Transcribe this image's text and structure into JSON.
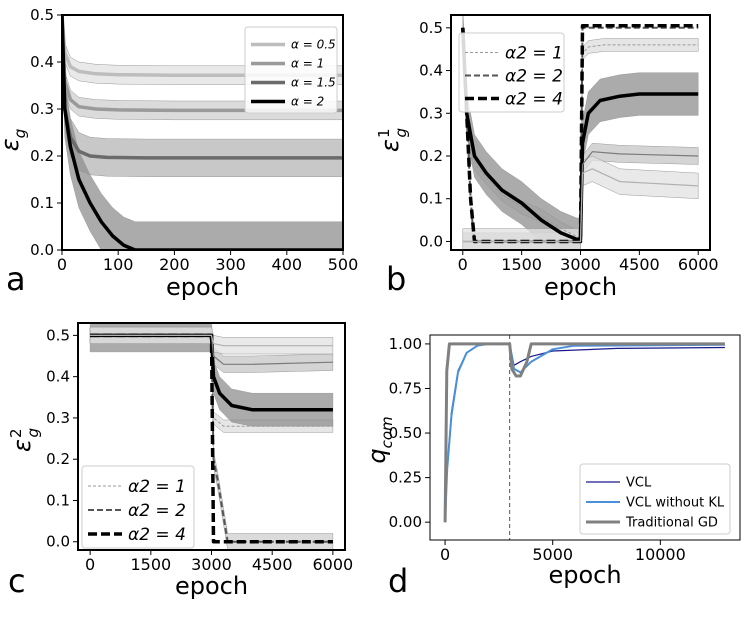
{
  "panels": {
    "a": {
      "letter": "a",
      "xlabel": "epoch",
      "ylabel_sym": "ε",
      "ylabel_sub": "g",
      "ylabel_sup": ""
    },
    "b": {
      "letter": "b",
      "xlabel": "epoch",
      "ylabel_sym": "ε",
      "ylabel_sub": "g",
      "ylabel_sup": "1"
    },
    "c": {
      "letter": "c",
      "xlabel": "epoch",
      "ylabel_sym": "ε",
      "ylabel_sub": "g",
      "ylabel_sup": "2"
    },
    "d": {
      "letter": "d",
      "xlabel": "epoch",
      "ylabel_sym": "q",
      "ylabel_sub": "com",
      "ylabel_sup": ""
    }
  },
  "colors": {
    "light": "#bdbdbd",
    "mid": "#9a9a9a",
    "dark": "#6b6b6b",
    "black": "#000000",
    "vcl": "#1a1a8c",
    "vcl_no_kl": "#4a90d9",
    "gd": "#808080"
  },
  "chart_data": [
    {
      "id": "a",
      "type": "line",
      "xlabel": "epoch",
      "ylabel": "εg",
      "xlim": [
        0,
        500
      ],
      "ylim": [
        0,
        0.5
      ],
      "xticks": [
        0,
        100,
        200,
        300,
        400,
        500
      ],
      "yticks": [
        0.0,
        0.1,
        0.2,
        0.3,
        0.4,
        0.5
      ],
      "xtick_labels": [
        "0",
        "100",
        "200",
        "300",
        "400",
        "500"
      ],
      "ytick_labels": [
        "0.0",
        "0.1",
        "0.2",
        "0.3",
        "0.4",
        "0.5"
      ],
      "legend_position": "top-right",
      "series": [
        {
          "name": "α = 0.5",
          "style": "light",
          "band": 0.02,
          "x": [
            0,
            5,
            15,
            30,
            60,
            100,
            200,
            500
          ],
          "y": [
            0.5,
            0.42,
            0.39,
            0.38,
            0.375,
            0.373,
            0.372,
            0.372
          ]
        },
        {
          "name": "α = 1",
          "style": "mid",
          "band": 0.02,
          "x": [
            0,
            5,
            15,
            30,
            60,
            100,
            200,
            500
          ],
          "y": [
            0.5,
            0.36,
            0.32,
            0.305,
            0.3,
            0.298,
            0.297,
            0.297
          ]
        },
        {
          "name": "α = 1.5",
          "style": "dark",
          "band": 0.04,
          "x": [
            0,
            5,
            15,
            30,
            50,
            80,
            150,
            500
          ],
          "y": [
            0.5,
            0.3,
            0.24,
            0.21,
            0.2,
            0.197,
            0.196,
            0.196
          ]
        },
        {
          "name": "α = 2",
          "style": "black",
          "band": 0.06,
          "x": [
            0,
            5,
            15,
            30,
            50,
            70,
            90,
            110,
            130,
            500
          ],
          "y": [
            0.5,
            0.3,
            0.22,
            0.15,
            0.1,
            0.06,
            0.03,
            0.01,
            0.0,
            0.0
          ]
        }
      ]
    },
    {
      "id": "b",
      "type": "line",
      "xlabel": "epoch",
      "ylabel": "εg1",
      "xlim": [
        -300,
        6300
      ],
      "ylim": [
        -0.02,
        0.53
      ],
      "xticks": [
        0,
        1500,
        3000,
        4500,
        6000
      ],
      "yticks": [
        0.0,
        0.1,
        0.2,
        0.3,
        0.4,
        0.5
      ],
      "xtick_labels": [
        "0",
        "1500",
        "3000",
        "4500",
        "6000"
      ],
      "ytick_labels": [
        "0.0",
        "0.1",
        "0.2",
        "0.3",
        "0.4",
        "0.5"
      ],
      "legend_position": "top-left",
      "series": [
        {
          "name": "α2 = 1",
          "style": "thin-dashed",
          "band": 0.015,
          "x": [
            0,
            100,
            200,
            400,
            700,
            1000,
            1500,
            2000,
            2500,
            2950,
            3000,
            3050,
            3200,
            3600,
            4500,
            6000
          ],
          "y": [
            0.5,
            0.28,
            0.2,
            0.17,
            0.14,
            0.11,
            0.08,
            0.06,
            0.03,
            0.01,
            0.01,
            0.44,
            0.455,
            0.46,
            0.46,
            0.46
          ]
        },
        {
          "name": "α2 = 2",
          "style": "dashed",
          "band": 0.0,
          "x": [
            0,
            100,
            150,
            200,
            250,
            300,
            400,
            3000,
            3050,
            6000
          ],
          "y": [
            0.5,
            0.3,
            0.2,
            0.1,
            0.04,
            0.0,
            0.0,
            0.0,
            0.5,
            0.5
          ]
        },
        {
          "name": "α2 = 4",
          "style": "thick-dashed",
          "band": 0.0,
          "x": [
            0,
            100,
            200,
            300,
            3000,
            3050,
            6000
          ],
          "y": [
            0.5,
            0.3,
            0.1,
            0.0,
            0.0,
            0.505,
            0.505
          ]
        },
        {
          "name": "",
          "style": "black",
          "band": 0.05,
          "x": [
            0,
            100,
            300,
            600,
            1000,
            1500,
            2000,
            2500,
            2900,
            3000,
            3050,
            3200,
            3500,
            4000,
            4500,
            6000
          ],
          "y": [
            0.5,
            0.3,
            0.2,
            0.16,
            0.12,
            0.09,
            0.05,
            0.02,
            0.005,
            0.005,
            0.23,
            0.3,
            0.33,
            0.34,
            0.345,
            0.345
          ]
        },
        {
          "name": "",
          "style": "mid-thin",
          "band": 0.02,
          "x": [
            0,
            3000,
            3050,
            3300,
            4000,
            6000
          ],
          "y": [
            0.0,
            0.0,
            0.18,
            0.21,
            0.205,
            0.2
          ]
        },
        {
          "name": "",
          "style": "light-thin",
          "band": 0.03,
          "x": [
            0,
            3000,
            3050,
            3300,
            4000,
            6000
          ],
          "y": [
            0.0,
            0.0,
            0.16,
            0.17,
            0.14,
            0.13
          ]
        }
      ]
    },
    {
      "id": "c",
      "type": "line",
      "xlabel": "epoch",
      "ylabel": "εg2",
      "xlim": [
        -300,
        6300
      ],
      "ylim": [
        -0.02,
        0.53
      ],
      "xticks": [
        0,
        1500,
        3000,
        4500,
        6000
      ],
      "yticks": [
        0.0,
        0.1,
        0.2,
        0.3,
        0.4,
        0.5
      ],
      "xtick_labels": [
        "0",
        "1500",
        "3000",
        "4500",
        "6000"
      ],
      "ytick_labels": [
        "0.0",
        "0.1",
        "0.2",
        "0.3",
        "0.4",
        "0.5"
      ],
      "legend_position": "bottom-left",
      "series": [
        {
          "name": "α2 = 1",
          "style": "thin-dashed",
          "band": 0.015,
          "x": [
            0,
            3000,
            3050,
            3300,
            4000,
            6000
          ],
          "y": [
            0.5,
            0.5,
            0.3,
            0.28,
            0.28,
            0.28
          ]
        },
        {
          "name": "α2 = 2",
          "style": "dashed",
          "band": 0.02,
          "x": [
            0,
            3000,
            3050,
            3150,
            3300,
            3400,
            6000
          ],
          "y": [
            0.5,
            0.5,
            0.2,
            0.15,
            0.06,
            0.0,
            0.0
          ]
        },
        {
          "name": "α2 = 4",
          "style": "thick-dashed",
          "band": 0.0,
          "x": [
            0,
            3000,
            3050,
            6000
          ],
          "y": [
            0.5,
            0.5,
            0.0,
            0.0
          ]
        },
        {
          "name": "",
          "style": "black",
          "band": 0.04,
          "x": [
            0,
            3000,
            3050,
            3200,
            3500,
            4000,
            6000
          ],
          "y": [
            0.5,
            0.5,
            0.4,
            0.36,
            0.33,
            0.32,
            0.32
          ]
        },
        {
          "name": "",
          "style": "mid-thin",
          "band": 0.02,
          "x": [
            0,
            3000,
            3050,
            3300,
            4000,
            6000
          ],
          "y": [
            0.5,
            0.5,
            0.45,
            0.43,
            0.43,
            0.435
          ]
        },
        {
          "name": "",
          "style": "light-thin",
          "band": 0.02,
          "x": [
            0,
            3000,
            3050,
            3300,
            4000,
            6000
          ],
          "y": [
            0.5,
            0.5,
            0.48,
            0.475,
            0.475,
            0.475
          ]
        }
      ]
    },
    {
      "id": "d",
      "type": "line",
      "xlabel": "epoch",
      "ylabel": "qcom",
      "xlim": [
        -700,
        13700
      ],
      "ylim": [
        -0.1,
        1.05
      ],
      "xticks": [
        0,
        5000,
        10000
      ],
      "yticks": [
        0.0,
        0.25,
        0.5,
        0.75,
        1.0
      ],
      "xtick_labels": [
        "0",
        "5000",
        "10000"
      ],
      "ytick_labels": [
        "0.00",
        "0.25",
        "0.50",
        "0.75",
        "1.00"
      ],
      "vline": 3000,
      "legend_position": "bottom-right",
      "series": [
        {
          "name": "VCL",
          "style": "vcl",
          "x": [
            0,
            100,
            300,
            600,
            1000,
            1500,
            2000,
            3000,
            3200,
            3500,
            4000,
            5000,
            8000,
            13000
          ],
          "y": [
            0.0,
            0.3,
            0.62,
            0.85,
            0.95,
            0.99,
            1.0,
            1.0,
            0.88,
            0.9,
            0.93,
            0.96,
            0.975,
            0.98
          ]
        },
        {
          "name": "VCL without KL",
          "style": "vcl_no_kl",
          "x": [
            0,
            100,
            300,
            600,
            1000,
            1500,
            2000,
            3000,
            3200,
            3500,
            4000,
            5000,
            6000,
            13000
          ],
          "y": [
            0.0,
            0.3,
            0.6,
            0.84,
            0.95,
            0.99,
            1.0,
            1.0,
            0.86,
            0.84,
            0.9,
            0.97,
            0.99,
            0.995
          ]
        },
        {
          "name": "Traditional GD",
          "style": "gd",
          "x": [
            0,
            80,
            200,
            400,
            3000,
            3100,
            3300,
            3500,
            3800,
            4000,
            13000
          ],
          "y": [
            0.0,
            0.85,
            1.0,
            1.0,
            1.0,
            0.86,
            0.82,
            0.82,
            0.9,
            1.0,
            1.0
          ]
        }
      ]
    }
  ]
}
